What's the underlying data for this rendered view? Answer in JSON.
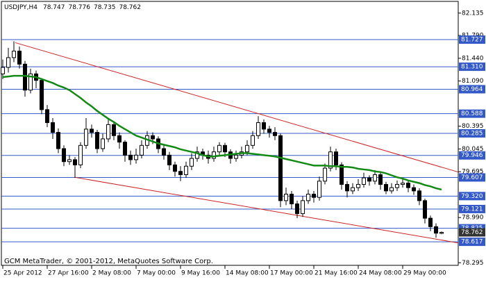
{
  "chart_data": {
    "type": "candlestick",
    "title": "USDJPY,H4",
    "footer": "GCM MetaTrader, © 2001-2012, MetaQuotes Software Corp.",
    "categories": [
      "25 Apr 2012",
      null,
      null,
      null,
      null,
      null,
      null,
      null,
      "27 Apr 16:00",
      null,
      null,
      null,
      null,
      null,
      null,
      null,
      "2 May 08:00",
      null,
      null,
      null,
      null,
      null,
      null,
      null,
      "7 May 00:00",
      null,
      null,
      null,
      null,
      null,
      null,
      null,
      "9 May 16:00",
      null,
      null,
      null,
      null,
      null,
      null,
      null,
      "14 May 08:00",
      null,
      null,
      null,
      null,
      null,
      null,
      null,
      "17 May 00:00",
      null,
      null,
      null,
      null,
      null,
      null,
      null,
      "21 May 16:00",
      null,
      null,
      null,
      null,
      null,
      null,
      null,
      "24 May 08:00",
      null,
      null,
      null,
      null,
      null,
      null,
      null,
      "29 May 00:00",
      null,
      null,
      null,
      null,
      null,
      null,
      null
    ],
    "open": [
      81.2,
      81.3,
      81.45,
      81.55,
      81.35,
      80.95,
      81.2,
      81.1,
      80.65,
      80.45,
      80.3,
      80.05,
      79.85,
      79.88,
      79.8,
      80.1,
      80.35,
      80.3,
      80.05,
      80.2,
      80.42,
      80.25,
      80.15,
      79.95,
      79.88,
      79.95,
      80.1,
      80.25,
      80.2,
      80.05,
      79.95,
      79.8,
      79.7,
      79.65,
      79.78,
      79.9,
      80.0,
      79.95,
      79.9,
      80.0,
      80.1,
      80.0,
      79.9,
      79.95,
      80.0,
      80.1,
      80.25,
      80.45,
      80.35,
      80.3,
      80.25,
      79.25,
      79.35,
      79.2,
      79.05,
      79.25,
      79.35,
      79.3,
      79.55,
      79.75,
      80.0,
      79.8,
      79.5,
      79.4,
      79.45,
      79.5,
      79.6,
      79.55,
      79.65,
      79.5,
      79.4,
      79.45,
      79.5,
      79.52,
      79.45,
      79.4,
      79.25,
      78.98,
      78.85,
      78.747
    ],
    "high": [
      81.42,
      81.6,
      81.7,
      81.62,
      81.4,
      81.28,
      81.25,
      81.12,
      80.72,
      80.52,
      80.36,
      80.1,
      79.95,
      79.92,
      80.15,
      80.52,
      80.42,
      80.34,
      80.28,
      80.5,
      80.46,
      80.3,
      80.18,
      80.02,
      80.05,
      80.18,
      80.32,
      80.3,
      80.24,
      80.1,
      80.0,
      79.85,
      79.78,
      79.85,
      79.98,
      80.08,
      80.05,
      80.02,
      80.08,
      80.15,
      80.14,
      80.04,
      80.02,
      80.08,
      80.18,
      80.32,
      80.55,
      80.5,
      80.4,
      80.38,
      80.28,
      79.45,
      79.4,
      79.25,
      79.32,
      79.42,
      79.4,
      79.62,
      79.82,
      80.08,
      80.05,
      79.84,
      79.55,
      79.52,
      79.58,
      79.68,
      79.64,
      79.72,
      79.68,
      79.54,
      79.52,
      79.56,
      79.58,
      79.55,
      79.5,
      79.44,
      79.28,
      79.02,
      78.9,
      78.776
    ],
    "low": [
      81.12,
      81.22,
      81.38,
      81.28,
      80.85,
      80.9,
      80.98,
      80.58,
      80.38,
      80.2,
      79.98,
      79.78,
      79.8,
      79.6,
      79.75,
      80.05,
      80.22,
      79.98,
      80.0,
      80.15,
      80.18,
      80.05,
      79.85,
      79.8,
      79.82,
      79.9,
      80.05,
      80.12,
      79.98,
      79.88,
      79.72,
      79.62,
      79.55,
      79.6,
      79.72,
      79.85,
      79.88,
      79.82,
      79.85,
      79.95,
      79.92,
      79.82,
      79.85,
      79.9,
      79.95,
      80.05,
      80.2,
      80.28,
      80.22,
      80.18,
      79.15,
      79.18,
      79.12,
      78.98,
      79.0,
      79.2,
      79.22,
      79.25,
      79.5,
      79.7,
      79.72,
      79.42,
      79.3,
      79.35,
      79.4,
      79.45,
      79.48,
      79.5,
      79.42,
      79.35,
      79.36,
      79.4,
      79.45,
      79.38,
      79.34,
      79.18,
      78.9,
      78.78,
      78.68,
      78.735
    ],
    "close": [
      81.3,
      81.45,
      81.55,
      81.35,
      80.95,
      81.2,
      81.1,
      80.65,
      80.45,
      80.3,
      80.05,
      79.85,
      79.88,
      79.8,
      80.1,
      80.35,
      80.3,
      80.05,
      80.2,
      80.42,
      80.25,
      80.15,
      79.95,
      79.88,
      79.95,
      80.1,
      80.25,
      80.2,
      80.05,
      79.95,
      79.8,
      79.7,
      79.65,
      79.78,
      79.9,
      80.0,
      79.95,
      79.9,
      80.0,
      80.1,
      80.0,
      79.9,
      79.95,
      80.0,
      80.1,
      80.25,
      80.45,
      80.35,
      80.3,
      80.25,
      79.25,
      79.35,
      79.2,
      79.05,
      79.25,
      79.35,
      79.3,
      79.55,
      79.75,
      80.0,
      79.8,
      79.5,
      79.4,
      79.45,
      79.5,
      79.6,
      79.55,
      79.65,
      79.5,
      79.4,
      79.45,
      79.5,
      79.52,
      79.45,
      79.4,
      79.25,
      78.98,
      78.85,
      78.75,
      78.762
    ],
    "ma": {
      "color": "#138a13",
      "values": [
        81.15,
        81.16,
        81.17,
        81.17,
        81.17,
        81.16,
        81.15,
        81.12,
        81.09,
        81.06,
        81.02,
        80.99,
        80.95,
        80.89,
        80.83,
        80.76,
        80.7,
        80.63,
        80.57,
        80.51,
        80.46,
        80.4,
        80.35,
        80.3,
        80.25,
        80.22,
        80.19,
        80.16,
        80.13,
        80.11,
        80.09,
        80.07,
        80.04,
        80.02,
        80.0,
        79.98,
        79.95,
        79.93,
        79.93,
        79.94,
        79.95,
        79.96,
        79.97,
        79.98,
        79.98,
        79.97,
        79.96,
        79.95,
        79.94,
        79.93,
        79.91,
        79.89,
        79.87,
        79.85,
        79.83,
        79.81,
        79.79,
        79.79,
        79.79,
        79.78,
        79.78,
        79.77,
        79.77,
        79.76,
        79.74,
        79.73,
        79.72,
        79.7,
        79.69,
        79.67,
        79.64,
        79.61,
        79.59,
        79.56,
        79.54,
        79.52,
        79.49,
        79.47,
        79.44,
        79.42
      ]
    },
    "trendline_color": "#cc2222",
    "trendlines": [
      {
        "x": [
          2.25,
          82
        ],
        "values": [
          81.68,
          79.69
        ]
      },
      {
        "x": [
          12.9,
          82
        ],
        "values": [
          79.61,
          78.6
        ]
      }
    ],
    "level_color": "#3358c8",
    "levels": [
      81.727,
      {
        "value": 81.31,
        "label": "81.310"
      },
      80.964,
      80.588,
      80.285,
      79.946,
      79.607,
      {
        "value": 79.32,
        "label": "79.320"
      },
      79.121,
      78.825,
      78.617
    ],
    "xlim": [
      -0.25,
      82
    ],
    "ylim": [
      78.255,
      82.315
    ],
    "yticks": [
      82.135,
      {
        "value": 81.79,
        "label": "81.790"
      },
      {
        "value": 81.44,
        "label": "81.440"
      },
      {
        "value": 81.09,
        "label": "81.090"
      },
      80.395,
      80.045,
      79.695,
      {
        "value": 78.99,
        "label": "78.990"
      },
      78.295
    ],
    "grid": false
  }
}
